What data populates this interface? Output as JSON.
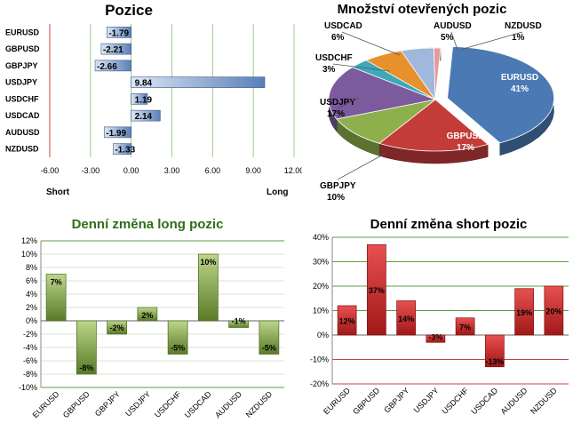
{
  "colors": {
    "green_line": "#9ccc8c",
    "red_line": "#c84040",
    "title_green": "#2e6f18",
    "title_black": "#000000",
    "bar_blue_start": "#dce6f4",
    "bar_blue_end": "#5a7fb8",
    "bar_green_start": "#bcd68a",
    "bar_green_end": "#5a7a28",
    "bar_red_start": "#e85050",
    "bar_red_end": "#a01818"
  },
  "chart_data": [
    {
      "id": "positions",
      "type": "bar",
      "orientation": "horizontal",
      "title": "Pozice",
      "categories": [
        "EURUSD",
        "GBPUSD",
        "GBPJPY",
        "USDJPY",
        "USDCHF",
        "USDCAD",
        "AUDUSD",
        "NZDUSD"
      ],
      "values": [
        -1.79,
        -2.21,
        -2.66,
        9.84,
        1.19,
        2.14,
        -1.99,
        -1.33
      ],
      "value_labels": [
        "-1.79",
        "-2.21",
        "-2.66",
        "9.84",
        "1.19",
        "2.14",
        "-1.99",
        "-1.33"
      ],
      "xlim": [
        -6,
        12
      ],
      "xticks": [
        "-6.00",
        "-3.00",
        "0.00",
        "3.00",
        "6.00",
        "9.00",
        "12.00"
      ],
      "left_label": "Short",
      "right_label": "Long",
      "grid": true
    },
    {
      "id": "open_positions",
      "type": "pie",
      "title": "Množství otevřených pozic",
      "categories": [
        "EURUSD",
        "GBPUSD",
        "GBPJPY",
        "USDJPY",
        "USDCHF",
        "USDCAD",
        "AUDUSD",
        "NZDUSD"
      ],
      "values": [
        41,
        17,
        10,
        17,
        3,
        6,
        5,
        1
      ],
      "labels": [
        "41%",
        "17%",
        "10%",
        "17%",
        "3%",
        "6%",
        "5%",
        "1%"
      ],
      "colors": [
        "#4a79b4",
        "#c43c3a",
        "#8eb04c",
        "#7c5a9e",
        "#3ca8b8",
        "#e8902c",
        "#a0b8dc",
        "#e89898"
      ]
    },
    {
      "id": "daily_long",
      "type": "bar",
      "title": "Denní změna long pozic",
      "categories": [
        "EURUSD",
        "GBPUSD",
        "GBPJPY",
        "USDJPY",
        "USDCHF",
        "USDCAD",
        "AUDUSD",
        "NZDUSD"
      ],
      "values": [
        7,
        -8,
        -2,
        2,
        -5,
        10,
        -1,
        -5
      ],
      "value_labels": [
        "7%",
        "-8%",
        "-2%",
        "2%",
        "-5%",
        "10%",
        "-1%",
        "-5%"
      ],
      "ylim": [
        -10,
        12
      ],
      "yticks": [
        "12%",
        "10%",
        "8%",
        "6%",
        "4%",
        "2%",
        "0%",
        "-2%",
        "-4%",
        "-6%",
        "-8%",
        "-10%"
      ],
      "grid": true
    },
    {
      "id": "daily_short",
      "type": "bar",
      "title": "Denní změna short pozic",
      "categories": [
        "EURUSD",
        "GBPUSD",
        "GBPJPY",
        "USDJPY",
        "USDCHF",
        "USDCAD",
        "AUDUSD",
        "NZDUSD"
      ],
      "values": [
        12,
        37,
        14,
        -3,
        7,
        -13,
        19,
        20
      ],
      "value_labels": [
        "12%",
        "37%",
        "14%",
        "-3%",
        "7%",
        "-13%",
        "19%",
        "20%"
      ],
      "ylim": [
        -20,
        40
      ],
      "yticks": [
        "40%",
        "30%",
        "20%",
        "10%",
        "0%",
        "-10%",
        "-20%"
      ],
      "grid": true
    }
  ]
}
